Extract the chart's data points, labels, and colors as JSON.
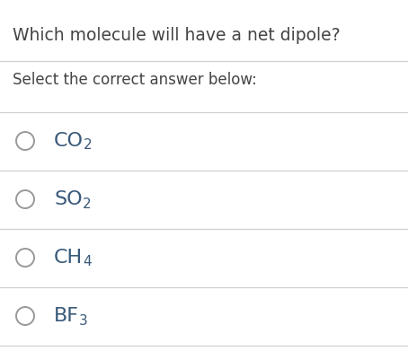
{
  "title": "Which molecule will have a net dipole?",
  "subtitle": "Select the correct answer below:",
  "options": [
    {
      "main": "CO",
      "sub": "2"
    },
    {
      "main": "SO",
      "sub": "2"
    },
    {
      "main": "CH",
      "sub": "4"
    },
    {
      "main": "BF",
      "sub": "3"
    }
  ],
  "bg_color": "#ffffff",
  "title_color": "#444444",
  "subtitle_color": "#444444",
  "text_color": "#3a5a7a",
  "line_color": "#d0d0d0",
  "circle_color": "#999999",
  "title_fontsize": 13.5,
  "subtitle_fontsize": 12,
  "option_fontsize": 16,
  "sub_fontsize": 11
}
